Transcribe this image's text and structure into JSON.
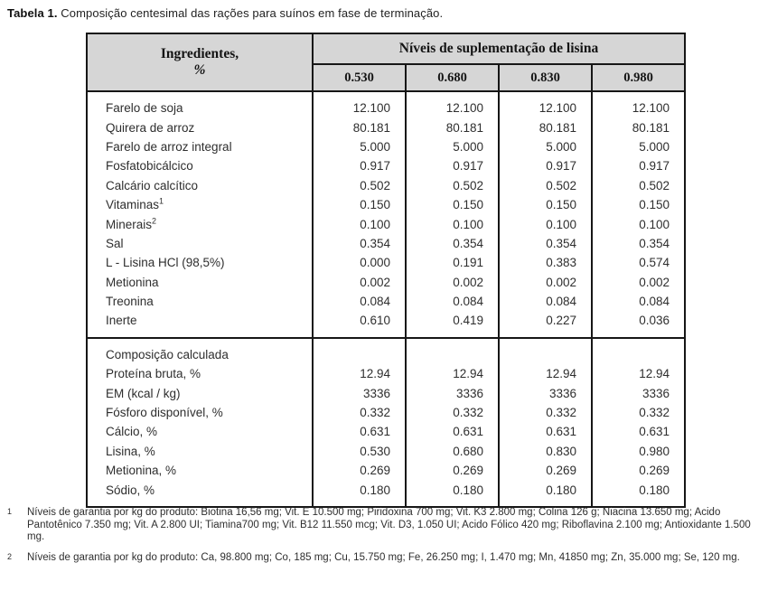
{
  "title": {
    "prefix": "Tabela 1.",
    "text": " Composição centesimal das rações para suínos em fase de terminação."
  },
  "colors": {
    "header_bg": "#d6d6d6",
    "border": "#161616"
  },
  "table": {
    "col1_header_line1": "Ingredientes,",
    "col1_header_line2": "%",
    "group_header": "Níveis de suplementação de lisina",
    "levels": [
      "0.530",
      "0.680",
      "0.830",
      "0.980"
    ],
    "sections": [
      {
        "rows": [
          {
            "label": "Farelo de soja",
            "values": [
              "12.100",
              "12.100",
              "12.100",
              "12.100"
            ]
          },
          {
            "label": "Quirera de arroz",
            "values": [
              "80.181",
              "80.181",
              "80.181",
              "80.181"
            ]
          },
          {
            "label": "Farelo de arroz integral",
            "values": [
              "5.000",
              "5.000",
              "5.000",
              "5.000"
            ]
          },
          {
            "label": "Fosfatobicálcico",
            "values": [
              "0.917",
              "0.917",
              "0.917",
              "0.917"
            ]
          },
          {
            "label": "Calcário calcítico",
            "values": [
              "0.502",
              "0.502",
              "0.502",
              "0.502"
            ]
          },
          {
            "label": "Vitaminas",
            "sup": "1",
            "values": [
              "0.150",
              "0.150",
              "0.150",
              "0.150"
            ]
          },
          {
            "label": "Minerais",
            "sup": "2",
            "values": [
              "0.100",
              "0.100",
              "0.100",
              "0.100"
            ]
          },
          {
            "label": "Sal",
            "values": [
              "0.354",
              "0.354",
              "0.354",
              "0.354"
            ]
          },
          {
            "label": "L - Lisina HCl (98,5%)",
            "values": [
              "0.000",
              "0.191",
              "0.383",
              "0.574"
            ]
          },
          {
            "label": "Metionina",
            "values": [
              "0.002",
              "0.002",
              "0.002",
              "0.002"
            ]
          },
          {
            "label": "Treonina",
            "values": [
              "0.084",
              "0.084",
              "0.084",
              "0.084"
            ]
          },
          {
            "label": "Inerte",
            "values": [
              "0.610",
              "0.419",
              "0.227",
              "0.036"
            ]
          }
        ]
      },
      {
        "rows": [
          {
            "label": "Composição calculada",
            "values": [
              "",
              "",
              "",
              ""
            ]
          },
          {
            "label": "Proteína bruta, %",
            "values": [
              "12.94",
              "12.94",
              "12.94",
              "12.94"
            ]
          },
          {
            "label": "EM (kcal / kg)",
            "values": [
              "3336",
              "3336",
              "3336",
              "3336"
            ]
          },
          {
            "label": "Fósforo disponível, %",
            "values": [
              "0.332",
              "0.332",
              "0.332",
              "0.332"
            ]
          },
          {
            "label": "Cálcio, %",
            "values": [
              "0.631",
              "0.631",
              "0.631",
              "0.631"
            ]
          },
          {
            "label": "Lisina, %",
            "values": [
              "0.530",
              "0.680",
              "0.830",
              "0.980"
            ]
          },
          {
            "label": "Metionina, %",
            "values": [
              "0.269",
              "0.269",
              "0.269",
              "0.269"
            ]
          },
          {
            "label": "Sódio, %",
            "values": [
              "0.180",
              "0.180",
              "0.180",
              "0.180"
            ]
          }
        ]
      }
    ]
  },
  "footnotes": [
    {
      "marker": "1",
      "text": "Níveis de garantia por kg do produto: Biotina 16,56 mg; Vit. E 10.500 mg; Piridoxina 700 mg; Vit. K3 2.800 mg; Colina 126 g; Niacina 13.650 mg; Acido Pantotênico 7.350 mg; Vit. A 2.800 UI; Tiamina700 mg; Vit. B12 11.550 mcg; Vit. D3, 1.050 UI; Acido Fólico 420 mg; Riboflavina 2.100 mg; Antioxidante 1.500 mg."
    },
    {
      "marker": "2",
      "text": "Níveis de garantia por kg do produto: Ca, 98.800 mg; Co, 185 mg; Cu, 15.750 mg; Fe, 26.250 mg; I, 1.470 mg; Mn, 41850 mg; Zn, 35.000 mg; Se, 120 mg."
    }
  ]
}
